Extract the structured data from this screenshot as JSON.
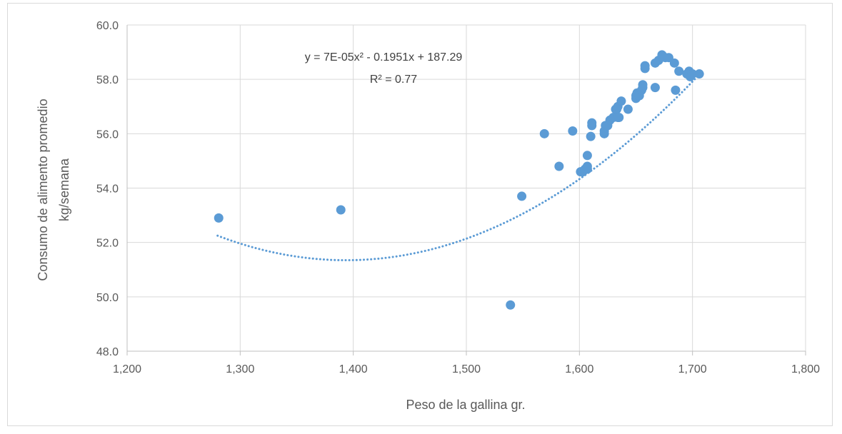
{
  "chart_data": {
    "type": "scatter",
    "title": "",
    "xlabel": "Peso de la gallina gr.",
    "ylabel_lines": [
      "Consumo de alimento promedio",
      "kg/semana"
    ],
    "xlim": [
      1200,
      1800
    ],
    "ylim": [
      48,
      60
    ],
    "x_ticks": [
      1200,
      1300,
      1400,
      1500,
      1600,
      1700,
      1800
    ],
    "x_tick_labels": [
      "1,200",
      "1,300",
      "1,400",
      "1,500",
      "1,600",
      "1,700",
      "1,800"
    ],
    "y_ticks": [
      48,
      50,
      52,
      54,
      56,
      58,
      60
    ],
    "y_tick_labels": [
      "48.0",
      "50.0",
      "52.0",
      "54.0",
      "56.0",
      "58.0",
      "60.0"
    ],
    "grid": true,
    "marker_color": "#5b9bd5",
    "trendline": {
      "type": "polynomial",
      "style": "dotted",
      "color": "#5b9bd5",
      "x_range": [
        1280,
        1708
      ],
      "coefficients": [
        7e-05,
        -0.1951,
        187.29
      ],
      "equation": "y = 7E-05x² - 0.1951x + 187.29",
      "r_squared": "R² = 0.77"
    },
    "points": [
      [
        1281,
        52.9
      ],
      [
        1389,
        53.2
      ],
      [
        1539,
        49.7
      ],
      [
        1549,
        53.7
      ],
      [
        1569,
        56.0
      ],
      [
        1582,
        54.8
      ],
      [
        1594,
        56.1
      ],
      [
        1601,
        54.6
      ],
      [
        1603,
        54.6
      ],
      [
        1605,
        54.7
      ],
      [
        1607,
        54.7
      ],
      [
        1607,
        54.8
      ],
      [
        1607,
        55.2
      ],
      [
        1610,
        55.9
      ],
      [
        1611,
        56.3
      ],
      [
        1611,
        56.4
      ],
      [
        1622,
        56.0
      ],
      [
        1622,
        56.1
      ],
      [
        1623,
        56.3
      ],
      [
        1625,
        56.3
      ],
      [
        1627,
        56.5
      ],
      [
        1630,
        56.6
      ],
      [
        1632,
        56.9
      ],
      [
        1633,
        56.9
      ],
      [
        1634,
        57.0
      ],
      [
        1634,
        56.6
      ],
      [
        1635,
        56.6
      ],
      [
        1637,
        57.2
      ],
      [
        1643,
        56.9
      ],
      [
        1650,
        57.3
      ],
      [
        1650,
        57.4
      ],
      [
        1651,
        57.5
      ],
      [
        1653,
        57.4
      ],
      [
        1655,
        57.6
      ],
      [
        1656,
        57.7
      ],
      [
        1656,
        57.8
      ],
      [
        1658,
        58.4
      ],
      [
        1658,
        58.5
      ],
      [
        1667,
        57.7
      ],
      [
        1667,
        58.6
      ],
      [
        1670,
        58.7
      ],
      [
        1673,
        58.9
      ],
      [
        1676,
        58.8
      ],
      [
        1679,
        58.8
      ],
      [
        1684,
        58.6
      ],
      [
        1685,
        57.6
      ],
      [
        1688,
        58.3
      ],
      [
        1695,
        58.2
      ],
      [
        1697,
        58.3
      ],
      [
        1698,
        58.1
      ],
      [
        1700,
        58.2
      ],
      [
        1706,
        58.2
      ]
    ]
  }
}
